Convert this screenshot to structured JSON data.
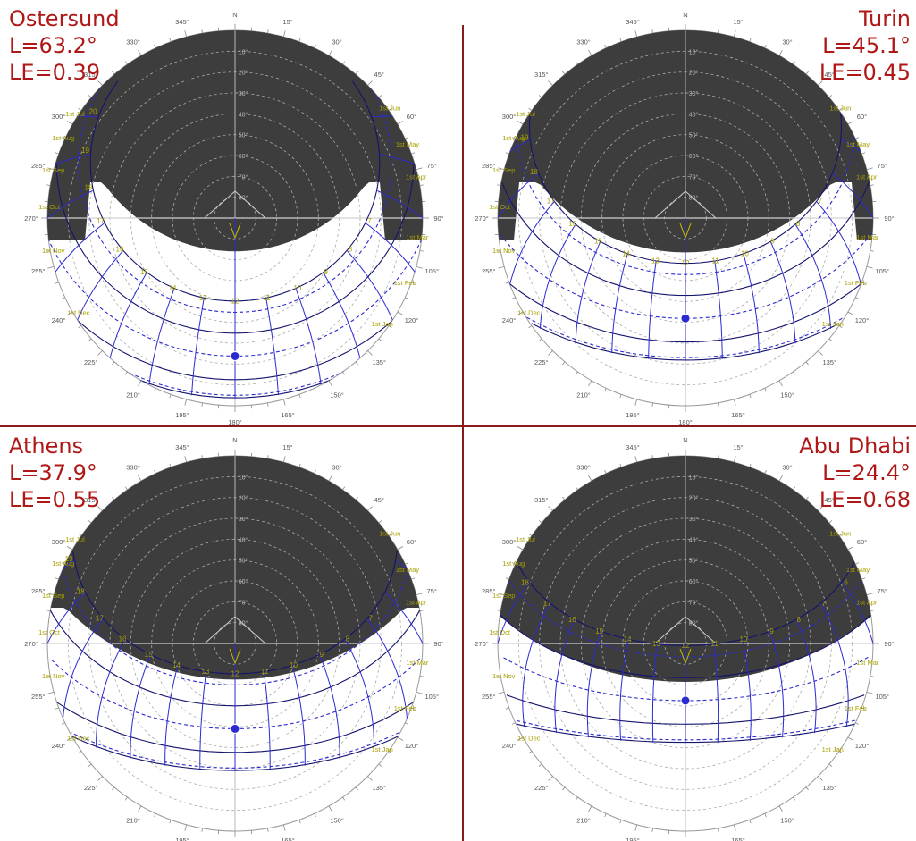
{
  "colors": {
    "divider": "#8b1a1a",
    "title": "#b01818",
    "mask": "#3d3d3d",
    "grid_dash": "#aaaaaa",
    "blue": "#2a2ad0",
    "navy": "#14146e",
    "yellow_label": "#a8a000",
    "grey_label": "#555555"
  },
  "azimuth_labels": [
    "N",
    "15°",
    "30°",
    "45°",
    "60°",
    "75°",
    "90°",
    "105°",
    "120°",
    "135°",
    "150°",
    "165°",
    "180°",
    "195°",
    "210°",
    "225°",
    "240°",
    "255°",
    "270°",
    "285°",
    "300°",
    "315°",
    "330°",
    "345°"
  ],
  "altitude_labels": [
    "10°",
    "20°",
    "30°",
    "40°",
    "50°",
    "60°",
    "70°",
    "80°"
  ],
  "panels": [
    {
      "id": "ostersund",
      "name": "Ostersund",
      "latitude": "L=63.2°",
      "le": "LE=0.39",
      "title_side": "left",
      "lat_value": 63.2,
      "le_value": 0.39,
      "hour_labels": [
        "7",
        "8",
        "9",
        "10",
        "11",
        "12",
        "13",
        "14",
        "15",
        "16",
        "17",
        "18",
        "19",
        "20"
      ],
      "date_labels_left": [
        "1st Jul",
        "1st Aug",
        "1st Sep",
        "1st Oct",
        "1st Nov",
        "1st Dec"
      ],
      "date_labels_right": [
        "1st Jun",
        "1st May",
        "1st Apr",
        "1st Mar",
        "1st Feb",
        "1st Jan"
      ]
    },
    {
      "id": "turin",
      "name": "Turin",
      "latitude": "L=45.1°",
      "le": "LE=0.45",
      "title_side": "right",
      "lat_value": 45.1,
      "le_value": 0.45,
      "hour_labels": [
        "7",
        "8",
        "9",
        "10",
        "11",
        "12",
        "13",
        "14",
        "15",
        "16",
        "17",
        "18",
        "19",
        "20"
      ],
      "date_labels_left": [
        "1st Jul",
        "1st Aug",
        "1st Sep",
        "1st Oct",
        "1st Nov",
        "1st Dec"
      ],
      "date_labels_right": [
        "1st Jun",
        "1st May",
        "1st Apr",
        "1st Mar",
        "1st Feb",
        "1st Jan"
      ]
    },
    {
      "id": "athens",
      "name": "Athens",
      "latitude": "L=37.9°",
      "le": "LE=0.55",
      "title_side": "left",
      "lat_value": 37.9,
      "le_value": 0.55,
      "hour_labels": [
        "7",
        "8",
        "9",
        "10",
        "11",
        "12",
        "13",
        "14",
        "15",
        "16",
        "17",
        "18",
        "19"
      ],
      "date_labels_left": [
        "1st Jul",
        "1st Aug",
        "1st Sep",
        "1st Oct",
        "1st Nov",
        "1st Dec"
      ],
      "date_labels_right": [
        "1st Jun",
        "1st May",
        "1st Apr",
        "1st Mar",
        "1st Feb",
        "1st Jan"
      ]
    },
    {
      "id": "abudhabi",
      "name": "Abu Dhabi",
      "latitude": "L=24.4°",
      "le": "LE=0.68",
      "title_side": "right",
      "lat_value": 24.4,
      "le_value": 0.68,
      "hour_labels": [
        "6",
        "7",
        "8",
        "9",
        "10",
        "11",
        "12",
        "13",
        "14",
        "15",
        "16",
        "17",
        "18"
      ],
      "date_labels_left": [
        "1st Jul",
        "1st Aug",
        "1st Sep",
        "1st Oct",
        "1st Nov",
        "1st Dec"
      ],
      "date_labels_right": [
        "1st Jun",
        "1st May",
        "1st Apr",
        "1st Mar",
        "1st Feb",
        "1st Jan"
      ]
    }
  ]
}
